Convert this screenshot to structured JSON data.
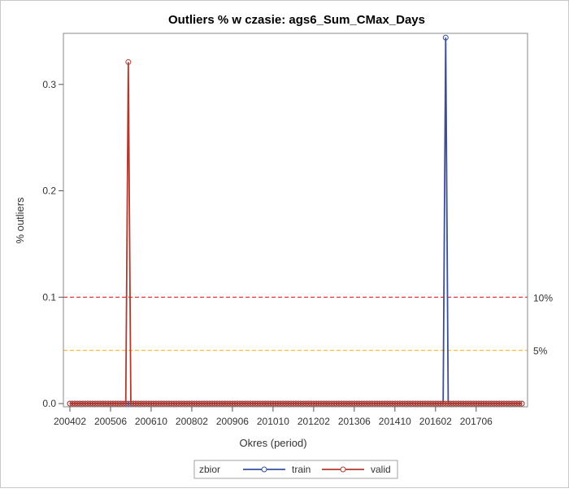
{
  "chart_data": {
    "type": "line",
    "title": "Outliers % w czasie: ags6_Sum_CMax_Days",
    "xlabel": "Okres (period)",
    "ylabel": "% outliers",
    "x_tick_labels": [
      "200402",
      "200506",
      "200610",
      "200802",
      "200906",
      "201010",
      "201202",
      "201306",
      "201410",
      "201602",
      "201706"
    ],
    "y_ticks": [
      0.0,
      0.1,
      0.2,
      0.3
    ],
    "y_tick_labels": [
      "0.0",
      "0.1",
      "0.2",
      "0.3"
    ],
    "ylim": [
      -0.003,
      0.348
    ],
    "period_start": "200402",
    "period_end": "201812",
    "grid": false,
    "reference_lines": [
      {
        "value": 0.1,
        "label": "10%",
        "color": "#d62728",
        "style": "dashed"
      },
      {
        "value": 0.05,
        "label": "5%",
        "color": "#f2b035",
        "style": "dashed"
      }
    ],
    "legend": {
      "title": "zbior",
      "placement": "bottom-center"
    },
    "series": [
      {
        "name": "train",
        "color": "#3a4e9c",
        "spikes": [
          {
            "period": "201606",
            "value": 0.344
          }
        ]
      },
      {
        "name": "valid",
        "color": "#b03a2e",
        "spikes": [
          {
            "period": "200601",
            "value": 0.321
          }
        ]
      }
    ]
  }
}
